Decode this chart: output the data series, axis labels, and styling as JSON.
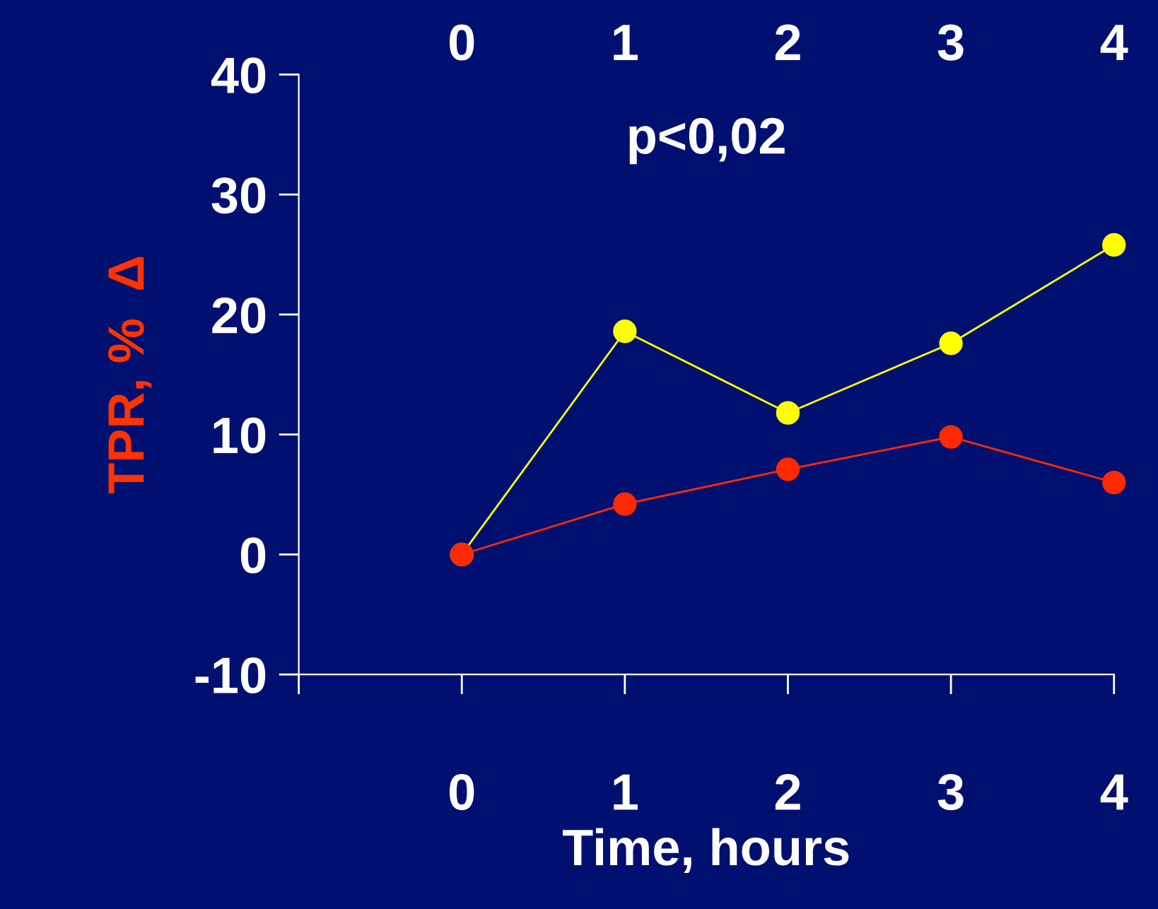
{
  "chart_data": {
    "type": "line",
    "xlabel": "Time, hours",
    "ylabel": "TPR, %  Δ",
    "annotations": [
      "p<0,02"
    ],
    "x": [
      0,
      1,
      2,
      3,
      4
    ],
    "series": [
      {
        "color": "#ffff00",
        "values": [
          0,
          18.6,
          11.8,
          17.6,
          25.8
        ]
      },
      {
        "color": "#ff2a00",
        "values": [
          0,
          4.2,
          7.1,
          9.8,
          6.0
        ]
      }
    ],
    "xlim": [
      -1,
      4
    ],
    "xticks": [
      {
        "value": -1,
        "label": null
      },
      0,
      1,
      2,
      3,
      4
    ],
    "x2lim": [
      -1,
      4
    ],
    "x2ticks": [
      0,
      1,
      2,
      3,
      4
    ],
    "ylim": [
      -10,
      40
    ],
    "yticks": [
      -10,
      0,
      10,
      20,
      30,
      40
    ],
    "marker": "circle",
    "line_style": "solid",
    "grid": false,
    "legend": false
  }
}
